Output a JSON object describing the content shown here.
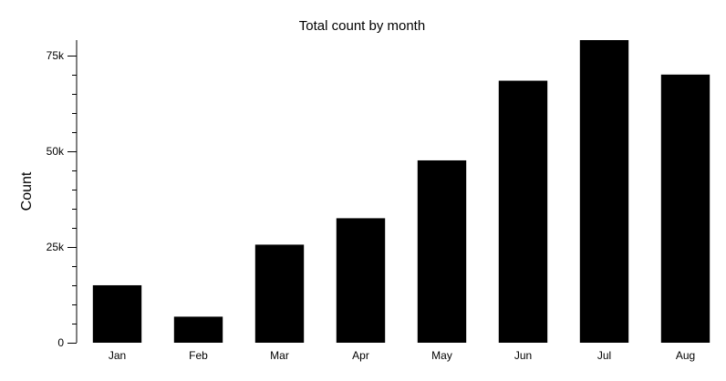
{
  "chart_data": {
    "type": "bar",
    "title": "Total count by month",
    "xlabel": "",
    "ylabel": "Count",
    "categories": [
      "Jan",
      "Feb",
      "Mar",
      "Apr",
      "May",
      "Jun",
      "Jul",
      "Aug"
    ],
    "values": [
      15000,
      6800,
      25600,
      32500,
      47600,
      68400,
      79000,
      70000
    ],
    "ylim": [
      0,
      79000
    ],
    "yticks": [
      0,
      25000,
      50000,
      75000
    ],
    "ytick_labels": [
      "0",
      "25k",
      "50k",
      "75k"
    ],
    "minor_tick_step": 5000,
    "grid": false,
    "legend": "none",
    "colors": {
      "bar": "#000000",
      "axis": "#000000",
      "background": "#ffffff"
    }
  }
}
